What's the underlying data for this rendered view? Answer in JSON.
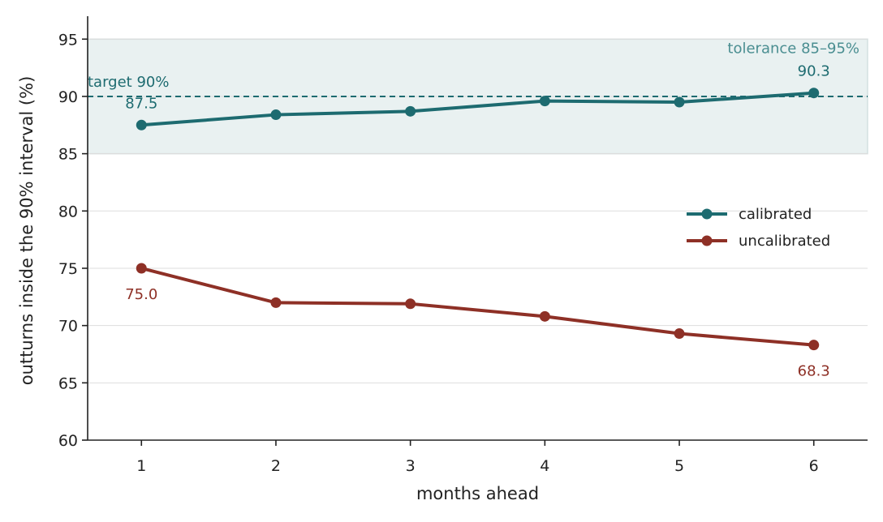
{
  "chart_data": {
    "type": "line",
    "xlabel": "months ahead",
    "ylabel": "outturns inside the 90% interval (%)",
    "xlim": [
      0.6,
      6.4
    ],
    "ylim": [
      60,
      97
    ],
    "x": [
      1,
      2,
      3,
      4,
      5,
      6
    ],
    "yticks": [
      60,
      65,
      70,
      75,
      80,
      85,
      90,
      95
    ],
    "grid": {
      "horizontal": true,
      "vertical": false
    },
    "legend_position": "right",
    "series": [
      {
        "name": "calibrated",
        "color": "#1d6b70",
        "values": [
          87.5,
          88.4,
          88.7,
          89.6,
          89.5,
          90.3
        ]
      },
      {
        "name": "uncalibrated",
        "color": "#8e3026",
        "values": [
          75.0,
          72.0,
          71.9,
          70.8,
          69.3,
          68.3
        ]
      }
    ],
    "tolerance_band": {
      "low": 85,
      "high": 95,
      "label": "tolerance 85–95%",
      "color": "#e9f1f1",
      "label_color": "#4a8e91"
    },
    "target_line": {
      "value": 90,
      "label": "target 90%",
      "color": "#1d6b70"
    },
    "data_labels": [
      {
        "series": 0,
        "index": 0,
        "text": "87.5",
        "position": "above"
      },
      {
        "series": 0,
        "index": 5,
        "text": "90.3",
        "position": "above"
      },
      {
        "series": 1,
        "index": 0,
        "text": "75.0",
        "position": "below"
      },
      {
        "series": 1,
        "index": 5,
        "text": "68.3",
        "position": "below"
      }
    ]
  }
}
